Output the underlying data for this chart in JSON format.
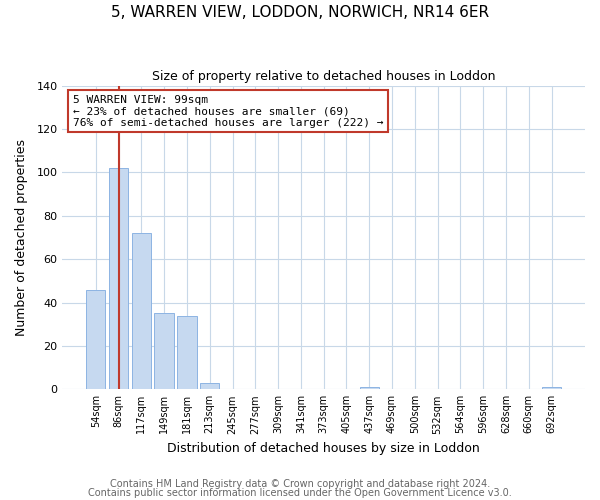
{
  "title": "5, WARREN VIEW, LODDON, NORWICH, NR14 6ER",
  "subtitle": "Size of property relative to detached houses in Loddon",
  "xlabel": "Distribution of detached houses by size in Loddon",
  "ylabel": "Number of detached properties",
  "bar_labels": [
    "54sqm",
    "86sqm",
    "117sqm",
    "149sqm",
    "181sqm",
    "213sqm",
    "245sqm",
    "277sqm",
    "309sqm",
    "341sqm",
    "373sqm",
    "405sqm",
    "437sqm",
    "469sqm",
    "500sqm",
    "532sqm",
    "564sqm",
    "596sqm",
    "628sqm",
    "660sqm",
    "692sqm"
  ],
  "bar_values": [
    46,
    102,
    72,
    35,
    34,
    3,
    0,
    0,
    0,
    0,
    0,
    0,
    1,
    0,
    0,
    0,
    0,
    0,
    0,
    0,
    1
  ],
  "bar_color": "#c6d9f0",
  "bar_edge_color": "#8db4e3",
  "vline_x": 1,
  "vline_color": "#c0392b",
  "ylim": [
    0,
    140
  ],
  "yticks": [
    0,
    20,
    40,
    60,
    80,
    100,
    120,
    140
  ],
  "annotation_title": "5 WARREN VIEW: 99sqm",
  "annotation_line1": "← 23% of detached houses are smaller (69)",
  "annotation_line2": "76% of semi-detached houses are larger (222) →",
  "annotation_box_color": "#ffffff",
  "annotation_box_edge": "#c0392b",
  "footer1": "Contains HM Land Registry data © Crown copyright and database right 2024.",
  "footer2": "Contains public sector information licensed under the Open Government Licence v3.0.",
  "background_color": "#ffffff",
  "grid_color": "#c8d8e8",
  "title_fontsize": 11,
  "subtitle_fontsize": 9,
  "footer_fontsize": 7
}
